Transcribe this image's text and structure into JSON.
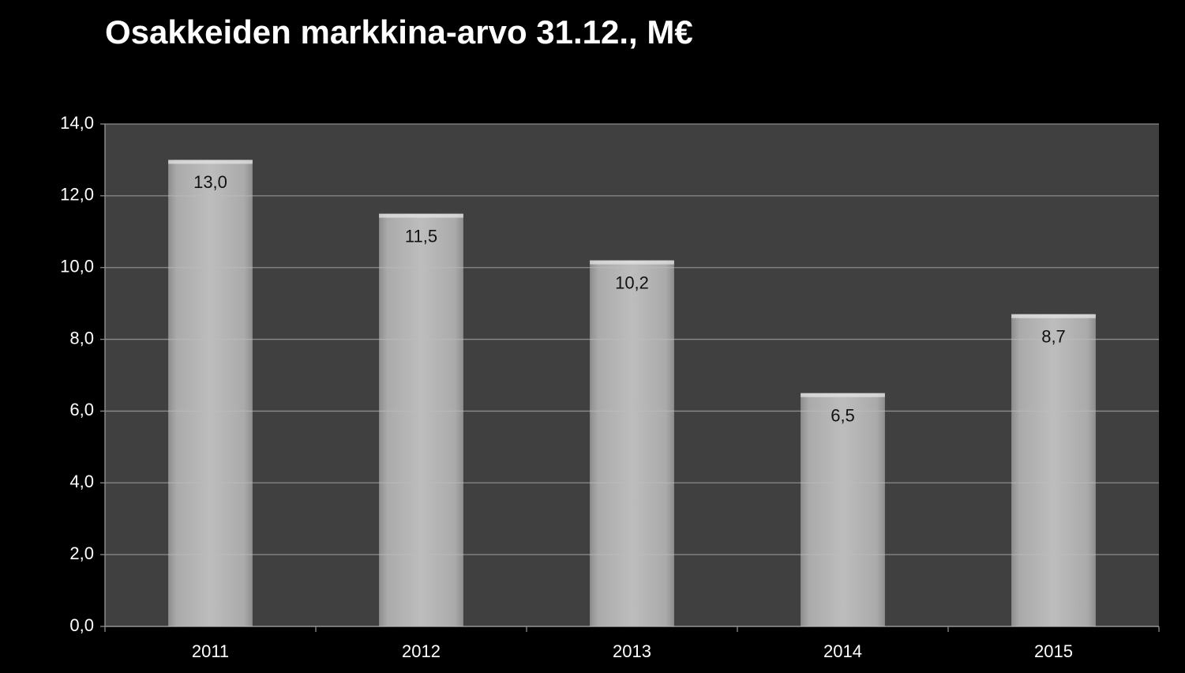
{
  "chart_data": {
    "type": "bar",
    "title": "Osakkeiden markkina-arvo 31.12., M€",
    "categories": [
      "2011",
      "2012",
      "2013",
      "2014",
      "2015"
    ],
    "values": [
      13.0,
      11.5,
      10.2,
      6.5,
      8.7
    ],
    "value_labels": [
      "13,0",
      "11,5",
      "10,2",
      "6,5",
      "8,7"
    ],
    "color": "#bdbdbd",
    "ylim": [
      0,
      14
    ],
    "yticks": [
      {
        "value": 0,
        "label": "0,0"
      },
      {
        "value": 2,
        "label": "2,0"
      },
      {
        "value": 4,
        "label": "4,0"
      },
      {
        "value": 6,
        "label": "6,0"
      },
      {
        "value": 8,
        "label": "8,0"
      },
      {
        "value": 10,
        "label": "10,0"
      },
      {
        "value": 12,
        "label": "12,0"
      },
      {
        "value": 14,
        "label": "14,0"
      }
    ],
    "grid": true
  }
}
